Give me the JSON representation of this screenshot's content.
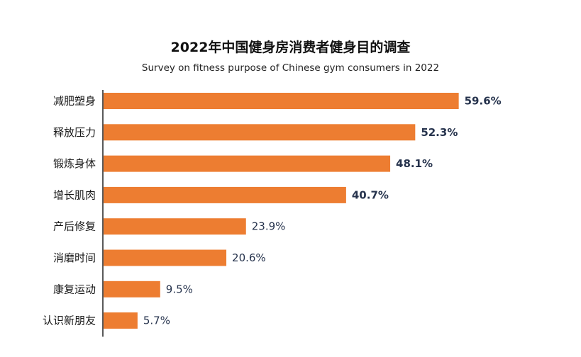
{
  "chart_data": {
    "type": "bar",
    "orientation": "horizontal",
    "title": "2022年中国健身房消费者健身目的调查",
    "subtitle": "Survey on fitness purpose of Chinese gym consumers in 2022",
    "categories": [
      "减肥塑身",
      "释放压力",
      "锻炼身体",
      "增长肌肉",
      "产后修复",
      "消磨时间",
      "康复运动",
      "认识新朋友"
    ],
    "values": [
      59.6,
      52.3,
      48.1,
      40.7,
      23.9,
      20.6,
      9.5,
      5.7
    ],
    "value_labels": [
      "59.6%",
      "52.3%",
      "48.1%",
      "40.7%",
      "23.9%",
      "20.6%",
      "9.5%",
      "5.7%"
    ],
    "unit": "%",
    "xlim": [
      0,
      60
    ],
    "grid": false,
    "legend": "none",
    "bar_color": "#ed7d31",
    "axis_color": "#222222"
  }
}
